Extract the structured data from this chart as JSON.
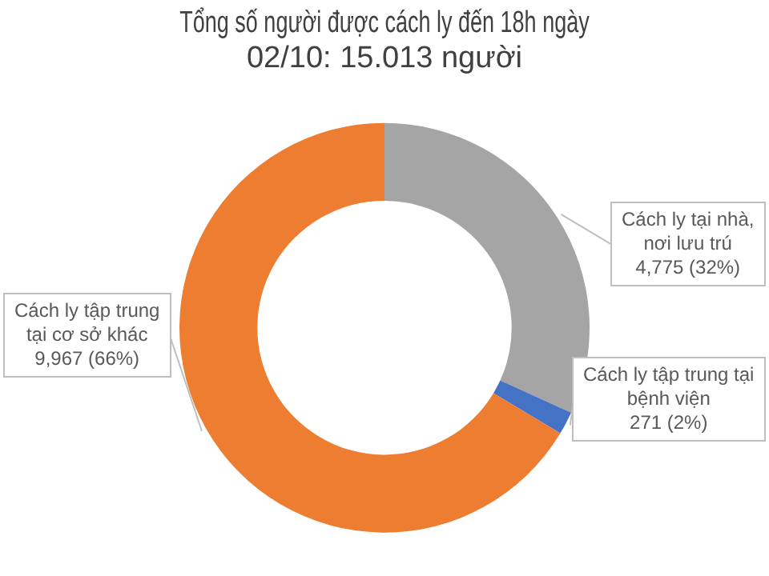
{
  "chart_data": {
    "type": "donut",
    "title": "Tổng số người được cách ly đến 18h ngày\n02/10: 15.013 người",
    "categories": [
      "Cách ly tại nhà,\nnơi lưu trú",
      "Cách ly tập trung tại\nbệnh viện",
      "Cách ly tập trung\ntại cơ sở khác"
    ],
    "values": [
      4775,
      271,
      9967
    ],
    "colors": [
      "#a5a5a5",
      "#4472c4",
      "#ed7d31"
    ],
    "value_labels": [
      "4,775 (32%)",
      "271 (2%)",
      "9,967 (66%)"
    ],
    "legend": false
  }
}
